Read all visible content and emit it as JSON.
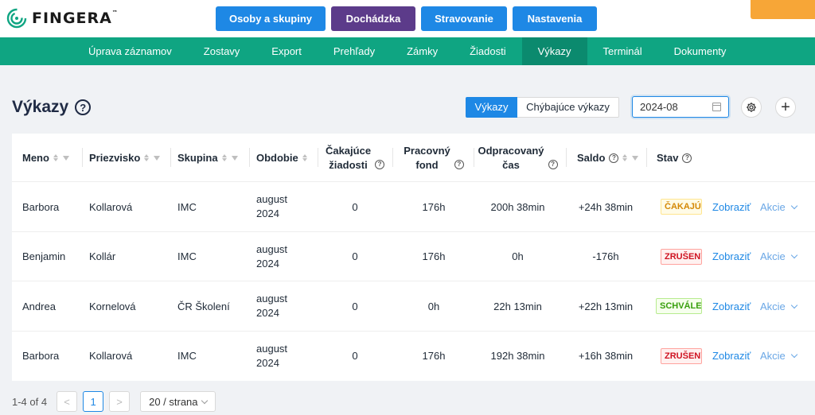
{
  "logo": {
    "text": "FINGERA",
    "mark": "™"
  },
  "topnav": [
    {
      "label": "Osoby a skupiny"
    },
    {
      "label": "Dochádzka"
    },
    {
      "label": "Stravovanie"
    },
    {
      "label": "Nastavenia"
    }
  ],
  "subnav": [
    {
      "label": "Úprava záznamov"
    },
    {
      "label": "Zostavy"
    },
    {
      "label": "Export"
    },
    {
      "label": "Prehľady"
    },
    {
      "label": "Zámky"
    },
    {
      "label": "Žiadosti"
    },
    {
      "label": "Výkazy"
    },
    {
      "label": "Terminál"
    },
    {
      "label": "Dokumenty"
    }
  ],
  "page": {
    "title": "Výkazy",
    "help": "?",
    "seg_active": "Výkazy",
    "seg_other": "Chýbajúce výkazy",
    "date_value": "2024-08",
    "plus": "+"
  },
  "table": {
    "headers": {
      "meno": "Meno",
      "priezvisko": "Priezvisko",
      "skupina": "Skupina",
      "obdobie": "Obdobie",
      "cakajuce_1": "Čakajúce",
      "cakajuce_2": "žiadosti",
      "fond_1": "Pracovný",
      "fond_2": "fond",
      "odprac_1": "Odpracovaný",
      "odprac_2": "čas",
      "saldo": "Saldo",
      "stav": "Stav"
    },
    "rows": [
      {
        "meno": "Barbora",
        "priezvisko": "Kollarová",
        "skupina": "IMC",
        "obdobie_1": "august",
        "obdobie_2": "2024",
        "cakajuce": "0",
        "fond": "176h",
        "odprac": "200h 38min",
        "saldo": "+24h 38min",
        "stav": "ČAKAJÚCE",
        "zobrazit": "Zobraziť",
        "akcie": "Akcie"
      },
      {
        "meno": "Benjamin",
        "priezvisko": "Kollár",
        "skupina": "IMC",
        "obdobie_1": "august",
        "obdobie_2": "2024",
        "cakajuce": "0",
        "fond": "176h",
        "odprac": "0h",
        "saldo": "-176h",
        "stav": "ZRUŠENÝ",
        "zobrazit": "Zobraziť",
        "akcie": "Akcie"
      },
      {
        "meno": "Andrea",
        "priezvisko": "Kornelová",
        "skupina": "ČR Školení",
        "obdobie_1": "august",
        "obdobie_2": "2024",
        "cakajuce": "0",
        "fond": "0h",
        "odprac": "22h 13min",
        "saldo": "+22h 13min",
        "stav": "SCHVÁLENÝ",
        "zobrazit": "Zobraziť",
        "akcie": "Akcie"
      },
      {
        "meno": "Barbora",
        "priezvisko": "Kollarová",
        "skupina": "IMC",
        "obdobie_1": "august",
        "obdobie_2": "2024",
        "cakajuce": "0",
        "fond": "176h",
        "odprac": "192h 38min",
        "saldo": "+16h 38min",
        "stav": "ZRUŠENÝ",
        "zobrazit": "Zobraziť",
        "akcie": "Akcie"
      }
    ]
  },
  "pagination": {
    "summary": "1-4 of 4",
    "prev": "<",
    "current": "1",
    "next": ">",
    "per_page": "20 / strana"
  },
  "colors": {
    "primary": "#1e88e5",
    "dochadzka": "#5c3b8a",
    "subnav": "#0fa582",
    "accent_orange": "#f7a637"
  }
}
